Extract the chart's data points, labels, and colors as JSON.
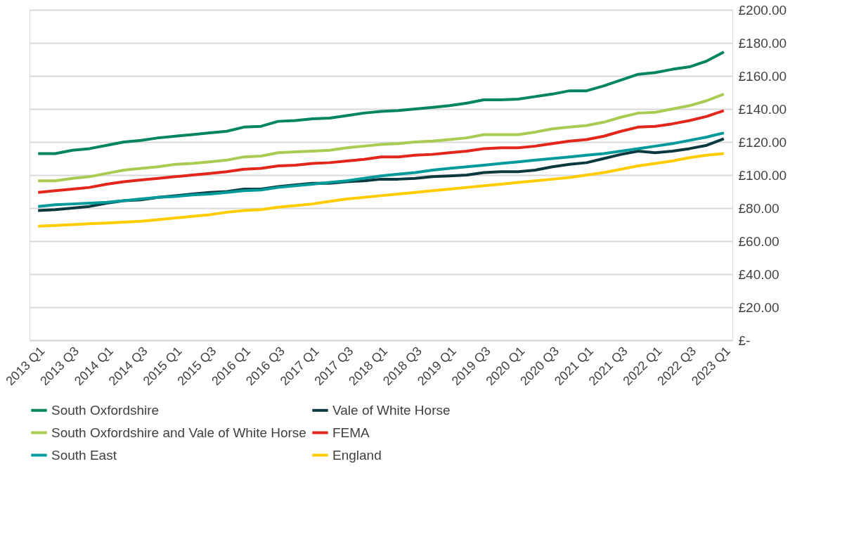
{
  "chart_data": {
    "type": "line",
    "categories": [
      "2013 Q1",
      null,
      "2013 Q3",
      null,
      "2014 Q1",
      null,
      "2014 Q3",
      null,
      "2015 Q1",
      null,
      "2015 Q3",
      null,
      "2016 Q1",
      null,
      "2016 Q3",
      null,
      "2017 Q1",
      null,
      "2017 Q3",
      null,
      "2018 Q1",
      null,
      "2018 Q3",
      null,
      "2019 Q1",
      null,
      "2019 Q3",
      null,
      "2020 Q1",
      null,
      "2020 Q3",
      null,
      "2021 Q1",
      null,
      "2021 Q3",
      null,
      "2022 Q1",
      null,
      "2022 Q3",
      null,
      "2023 Q1"
    ],
    "series": [
      {
        "name": "South Oxfordshire",
        "color": "#00855f",
        "values": [
          113,
          113,
          115,
          116,
          118,
          120,
          121,
          122.5,
          123.5,
          124.5,
          125.5,
          126.5,
          129,
          129.5,
          132.5,
          133,
          134,
          134.5,
          136,
          137.5,
          138.5,
          139,
          140,
          141,
          142,
          143.5,
          145.5,
          145.5,
          146,
          147.5,
          149,
          151,
          151,
          154,
          157.5,
          161,
          162,
          164,
          165.5,
          169,
          174.5
        ]
      },
      {
        "name": "Vale of White Horse",
        "color": "#0a3a3f",
        "values": [
          78.5,
          79,
          80,
          81,
          83,
          84.5,
          85,
          86.5,
          87.5,
          88.5,
          89.5,
          90,
          91.5,
          91.5,
          93,
          94,
          95,
          95,
          96,
          96.5,
          97.5,
          97.5,
          98,
          99,
          99.5,
          100,
          101.5,
          102,
          102,
          103,
          105,
          106.5,
          107.5,
          110,
          112.5,
          114.5,
          113.5,
          114.5,
          116,
          118,
          122
        ]
      },
      {
        "name": "South Oxfordshire and Vale of White Horse",
        "color": "#a8cc52",
        "values": [
          96.5,
          96.5,
          98,
          99,
          101,
          103,
          104,
          105,
          106.5,
          107,
          108,
          109,
          111,
          111.5,
          113.5,
          114,
          114.5,
          115,
          116.5,
          117.5,
          118.5,
          119,
          120,
          120.5,
          121.5,
          122.5,
          124.5,
          124.5,
          124.5,
          126,
          128,
          129,
          130,
          132,
          135,
          137.5,
          138,
          140,
          142,
          145,
          149
        ]
      },
      {
        "name": "FEMA",
        "color": "#e2261b",
        "values": [
          89.5,
          90.5,
          91.5,
          92.5,
          94.5,
          96,
          97,
          98,
          99,
          100,
          101,
          102,
          103.5,
          104,
          105.5,
          106,
          107,
          107.5,
          108.5,
          109.5,
          111,
          111,
          112,
          112.5,
          113.5,
          114.5,
          116,
          116.5,
          116.5,
          117.5,
          119,
          120.5,
          121.5,
          123.5,
          126.5,
          129,
          129.5,
          131,
          133,
          135.5,
          139
        ]
      },
      {
        "name": "South East",
        "color": "#009a9a",
        "values": [
          81,
          82,
          82.5,
          83,
          83.5,
          84.5,
          85.5,
          86.5,
          87,
          88,
          88.5,
          89.5,
          90.5,
          91,
          92.5,
          93.5,
          94.5,
          95.5,
          96.5,
          98,
          99.5,
          100.5,
          101.5,
          103,
          104,
          105,
          106,
          107,
          108,
          109,
          110,
          111,
          112,
          113,
          114.5,
          116,
          117.5,
          119,
          121,
          123,
          125.5
        ]
      },
      {
        "name": "England",
        "color": "#ffcc00",
        "values": [
          69,
          69.5,
          70,
          70.5,
          71,
          71.5,
          72,
          73,
          74,
          75,
          76,
          77.5,
          78.5,
          79,
          80.5,
          81.5,
          82.5,
          84,
          85.5,
          86.5,
          87.5,
          88.5,
          89.5,
          90.5,
          91.5,
          92.5,
          93.5,
          94.5,
          95.5,
          96.5,
          97.5,
          98.5,
          100,
          101.5,
          103.5,
          105.5,
          107,
          108.5,
          110.5,
          112,
          113
        ]
      }
    ],
    "ylim": [
      0,
      200
    ],
    "yticks": [
      {
        "value": 0,
        "label": "£-"
      },
      {
        "value": 20,
        "label": "£20.00"
      },
      {
        "value": 40,
        "label": "£40.00"
      },
      {
        "value": 60,
        "label": "£60.00"
      },
      {
        "value": 80,
        "label": "£80.00"
      },
      {
        "value": 100,
        "label": "£100.00"
      },
      {
        "value": 120,
        "label": "£120.00"
      },
      {
        "value": 140,
        "label": "£140.00"
      },
      {
        "value": 160,
        "label": "£160.00"
      },
      {
        "value": 180,
        "label": "£180.00"
      },
      {
        "value": 200,
        "label": "£200.00"
      }
    ],
    "grid": "y",
    "legend": "bottom",
    "marker": "none",
    "line_style": "solid"
  }
}
